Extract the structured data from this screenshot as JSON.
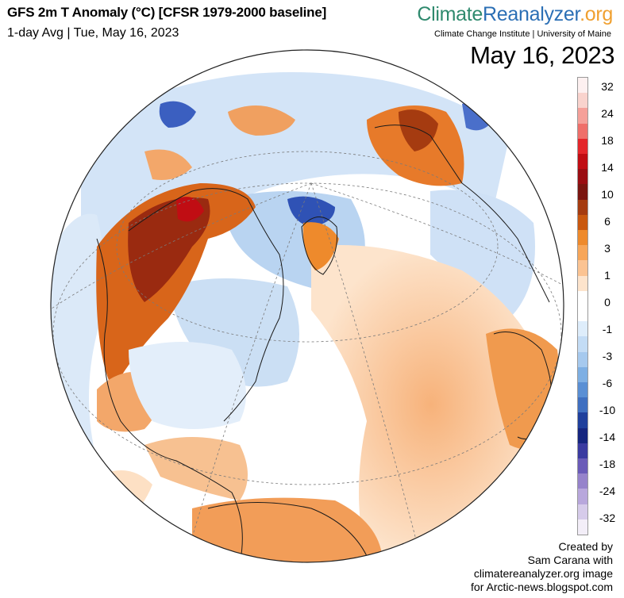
{
  "header": {
    "title": "GFS 2m T Anomaly (°C) [CFSR 1979-2000 baseline]",
    "subtitle": "1-day Avg | Tue, May 16, 2023",
    "date_big": "May 16, 2023"
  },
  "brand": {
    "part1": "Climate",
    "part2": "Reanalyzer",
    "part3": ".org",
    "institute": "Climate Change Institute | University of Maine"
  },
  "colorbar": {
    "labels": [
      "32",
      "24",
      "18",
      "14",
      "10",
      "6",
      "3",
      "1",
      "0",
      "-1",
      "-3",
      "-6",
      "-10",
      "-14",
      "-18",
      "-24",
      "-32"
    ],
    "colors": [
      "#fdf0f0",
      "#f9d3cd",
      "#f5a099",
      "#ef6f6a",
      "#e4262a",
      "#c00d13",
      "#9a0d12",
      "#7a1510",
      "#a53b10",
      "#c9580f",
      "#ee8a2c",
      "#f7a659",
      "#fbc392",
      "#fde4cc",
      "#ffffff",
      "#ffffff",
      "#deedfb",
      "#c3dcf5",
      "#a6c9ee",
      "#7eafe3",
      "#5a8fd4",
      "#3f6fc0",
      "#1f3f9c",
      "#15257f",
      "#3a3aa0",
      "#6a5bb8",
      "#9683cb",
      "#b8a7dc",
      "#d6cbea",
      "#f3eef8"
    ]
  },
  "credit": {
    "line1": "Created by",
    "line2": "Sam Carana with",
    "line3": "climatereanalyzer.org image",
    "line4": "for Arctic-news.blogspot.com"
  },
  "map": {
    "projection": "orthographic",
    "center": "North Pole / North Atlantic",
    "variable": "2m temperature anomaly"
  }
}
